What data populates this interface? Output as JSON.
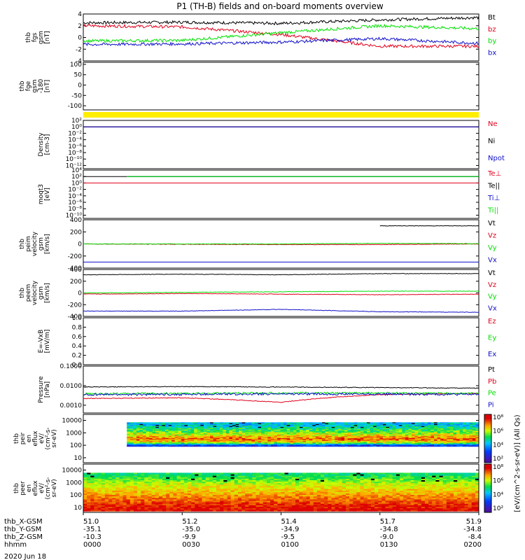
{
  "title": "P1 (TH-B) fields and on-board moments overview",
  "date_label": "2020 Jun 18",
  "xaxis": {
    "rows": [
      {
        "name": "thb_X-GSM",
        "values": [
          "51.0",
          "51.2",
          "51.4",
          "51.7",
          "51.9"
        ]
      },
      {
        "name": "thb_Y-GSM",
        "values": [
          "-35.1",
          "-35.0",
          "-34.9",
          "-34.8",
          "-34.8"
        ]
      },
      {
        "name": "thb_Z-GSM",
        "values": [
          "-10.3",
          "-9.9",
          "-9.5",
          "-9.0",
          "-8.4"
        ]
      },
      {
        "name": "hhmm",
        "values": [
          "0000",
          "0030",
          "0100",
          "0130",
          "0200"
        ]
      }
    ]
  },
  "colorbar": {
    "label": "[eV/(cm^2-s-sr-eV)] (All Qs)",
    "top_ticks": [
      "10^8",
      "10^6",
      "10^4",
      "10^2"
    ],
    "bottom_ticks": [
      "10^8",
      "10^6",
      "10^4",
      "10^2"
    ]
  },
  "colors": {
    "black": "#000000",
    "red": "#e0001b",
    "green": "#00e000",
    "blue": "#1010c8",
    "yellow": "#ffee00"
  },
  "chart_data": [
    {
      "type": "line",
      "ylabel": "thb fgs gsm [nT]",
      "ylim": [
        -4,
        4
      ],
      "yticks": [
        "4",
        "2",
        "0",
        "-2",
        "-4"
      ],
      "x": [
        "0000",
        "0030",
        "0100",
        "0130",
        "0200"
      ],
      "series": [
        {
          "name": "Bt",
          "color": "#000000",
          "values": [
            2.5,
            2.6,
            2.4,
            3.0,
            3.4
          ]
        },
        {
          "name": "bz",
          "color": "#e0001b",
          "values": [
            2.0,
            1.8,
            0.5,
            -1.5,
            -1.5
          ]
        },
        {
          "name": "by",
          "color": "#00e000",
          "values": [
            -0.6,
            -0.5,
            0.8,
            2.0,
            1.5
          ]
        },
        {
          "name": "bx",
          "color": "#1010c8",
          "values": [
            -1.2,
            -1.1,
            -0.8,
            -0.2,
            -1.0
          ]
        }
      ]
    },
    {
      "type": "line",
      "ylabel": "thb fge gsm -180 [nT]",
      "ylim": [
        -120,
        110
      ],
      "yticks": [
        "100",
        "50",
        "0",
        "-50",
        "-100"
      ],
      "series": []
    },
    {
      "type": "area",
      "name": "mode bar",
      "color": "#ffee00"
    },
    {
      "type": "line",
      "ylabel": "Density [cm-3]",
      "yscale": "log",
      "yticks": [
        "10^2",
        "10^0",
        "10^-2",
        "10^-4",
        "10^-6",
        "10^-8",
        "10^-10",
        "10^-12"
      ],
      "series": [
        {
          "name": "Ne",
          "color": "#e0001b",
          "values": [
            1.0,
            1.0,
            1.0,
            1.0,
            1.0
          ]
        },
        {
          "name": "Ni",
          "color": "#000000",
          "values": [
            1.0,
            1.0,
            1.0,
            1.0,
            1.0
          ]
        },
        {
          "name": "Npot",
          "color": "#1010c8",
          "values": [
            1.0,
            1.0,
            1.0,
            1.0,
            1.0
          ]
        }
      ]
    },
    {
      "type": "line",
      "ylabel": "moqt3 [eV]",
      "yscale": "log",
      "yticks": [
        "10^4",
        "10^2",
        "10^0",
        "10^-2",
        "10^-4",
        "10^-6",
        "10^-8",
        "10^-10"
      ],
      "series": [
        {
          "name": "Te⊥",
          "color": "#e0001b",
          "values": [
            1.0,
            1.0,
            1.0,
            1.0,
            1.0
          ]
        },
        {
          "name": "Te||",
          "color": "#000000",
          "values": [
            100,
            100,
            100,
            100,
            100
          ]
        },
        {
          "name": "Ti⊥",
          "color": "#1010c8",
          "values": [
            100,
            100,
            100,
            100,
            100
          ]
        },
        {
          "name": "Ti||",
          "color": "#00e000",
          "values": [
            100,
            100,
            100,
            100,
            100
          ]
        }
      ]
    },
    {
      "type": "line",
      "ylabel": "thb peim velocity gsm [km/s]",
      "ylim": [
        -400,
        400
      ],
      "yticks": [
        "400",
        "200",
        "0",
        "-200",
        "-400"
      ],
      "series": [
        {
          "name": "Vt",
          "color": "#000000",
          "values": [
            null,
            null,
            null,
            300,
            300
          ]
        },
        {
          "name": "Vz",
          "color": "#e0001b",
          "values": [
            0,
            -5,
            -10,
            -10,
            0
          ]
        },
        {
          "name": "Vy",
          "color": "#00e000",
          "values": [
            0,
            0,
            0,
            10,
            5
          ]
        },
        {
          "name": "Vx",
          "color": "#1010c8",
          "values": [
            -300,
            -300,
            -300,
            -300,
            -300
          ]
        }
      ]
    },
    {
      "type": "line",
      "ylabel": "thb peem velocity gsm [km/s]",
      "ylim": [
        -400,
        400
      ],
      "yticks": [
        "400",
        "200",
        "0",
        "-200",
        "-400"
      ],
      "series": [
        {
          "name": "Vt",
          "color": "#000000",
          "values": [
            310,
            320,
            310,
            330,
            330
          ]
        },
        {
          "name": "Vz",
          "color": "#e0001b",
          "values": [
            -20,
            -10,
            -20,
            -30,
            -20
          ]
        },
        {
          "name": "Vy",
          "color": "#00e000",
          "values": [
            0,
            10,
            20,
            30,
            30
          ]
        },
        {
          "name": "Vx",
          "color": "#1010c8",
          "values": [
            -310,
            -310,
            -280,
            -320,
            -330
          ]
        }
      ]
    },
    {
      "type": "line",
      "ylabel": "E=-VxB [mV/m]",
      "ylim": [
        0.0,
        1.0
      ],
      "yticks": [
        "1.0",
        "0.8",
        "0.6",
        "0.4",
        "0.2",
        "0.0"
      ],
      "series": [
        {
          "name": "Ez",
          "color": "#e0001b",
          "values": []
        },
        {
          "name": "Ey",
          "color": "#00e000",
          "values": []
        },
        {
          "name": "Ex",
          "color": "#1010c8",
          "values": []
        }
      ]
    },
    {
      "type": "line",
      "ylabel": "Pressure [nPa]",
      "yscale": "log",
      "ylim": [
        0.0004,
        0.1
      ],
      "yticks": [
        "0.1000",
        "0.0100",
        "0.0010"
      ],
      "series": [
        {
          "name": "Pt",
          "color": "#000000",
          "values": [
            0.0085,
            0.009,
            0.0085,
            0.008,
            0.0075
          ]
        },
        {
          "name": "Pb",
          "color": "#e0001b",
          "values": [
            0.0022,
            0.0024,
            0.0014,
            0.0035,
            0.004
          ]
        },
        {
          "name": "Pe",
          "color": "#00e000",
          "values": [
            0.0038,
            0.004,
            0.0042,
            0.0042,
            0.004
          ]
        },
        {
          "name": "Pi",
          "color": "#1010c8",
          "values": [
            0.0035,
            0.0036,
            0.0038,
            0.0037,
            0.0036
          ]
        }
      ]
    },
    {
      "type": "heatmap",
      "ylabel": "thb peir en eflux eV/ (cm^2-s- sr-eV)",
      "yscale": "log",
      "yticks": [
        "10000",
        "1000",
        "100",
        "10"
      ],
      "x_start": "0010",
      "energy_bands_eV": [
        {
          "e": 4000,
          "level": 4.5
        },
        {
          "e": 1500,
          "level": 5.5
        },
        {
          "e": 600,
          "level": 6.5
        },
        {
          "e": 300,
          "level": 7.5
        },
        {
          "e": 150,
          "level": 6.0
        },
        {
          "e": 100,
          "level": 3.0
        }
      ]
    },
    {
      "type": "heatmap",
      "ylabel": "thb peer en eflux eV/ (cm^2-s- sr-eV)",
      "yscale": "log",
      "yticks": [
        "10000",
        "1000",
        "100",
        "10"
      ],
      "energy_bands_eV": [
        {
          "e": 4000,
          "level": 5.2
        },
        {
          "e": 1500,
          "level": 5.8
        },
        {
          "e": 600,
          "level": 6.3
        },
        {
          "e": 150,
          "level": 6.8
        },
        {
          "e": 30,
          "level": 7.5
        },
        {
          "e": 8,
          "level": 8.0
        }
      ]
    }
  ]
}
